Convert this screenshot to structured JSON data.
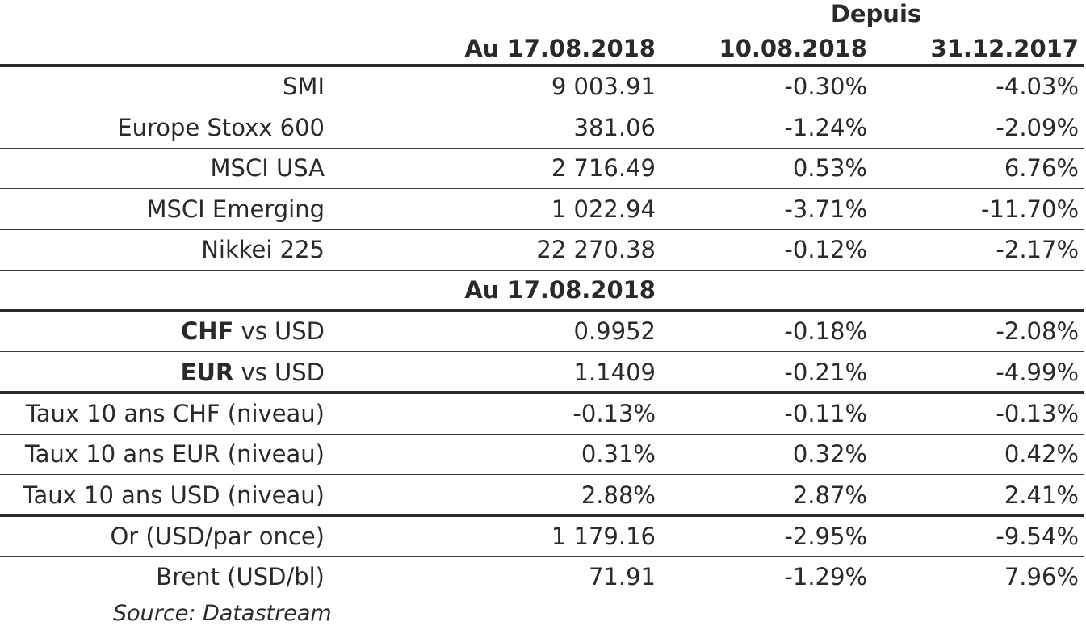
{
  "header": {
    "depuis": "Depuis",
    "col1": "Au 17.08.2018",
    "col2": "10.08.2018",
    "col3": "31.12.2017"
  },
  "section2_header": "Au 17.08.2018",
  "rows": [
    {
      "label": "SMI",
      "v1": "9 003.91",
      "v2": "-0.30%",
      "v3": "-4.03%"
    },
    {
      "label": "Europe Stoxx 600",
      "v1": "381.06",
      "v2": "-1.24%",
      "v3": "-2.09%"
    },
    {
      "label": "MSCI USA",
      "v1": "2 716.49",
      "v2": "0.53%",
      "v3": "6.76%"
    },
    {
      "label": "MSCI Emerging",
      "v1": "1 022.94",
      "v2": "-3.71%",
      "v3": "-11.70%"
    },
    {
      "label": "Nikkei 225",
      "v1": "22 270.38",
      "v2": "-0.12%",
      "v3": "-2.17%"
    }
  ],
  "fx_rows": [
    {
      "label_bold": "CHF",
      "label_rest": " vs USD",
      "v1": "0.9952",
      "v2": "-0.18%",
      "v3": "-2.08%"
    },
    {
      "label_bold": "EUR",
      "label_rest": " vs USD",
      "v1": "1.1409",
      "v2": "-0.21%",
      "v3": "-4.99%"
    }
  ],
  "rate_rows": [
    {
      "label": "Taux 10 ans CHF (niveau)",
      "v1": "-0.13%",
      "v2": "-0.11%",
      "v3": "-0.13%"
    },
    {
      "label": "Taux 10 ans EUR (niveau)",
      "v1": "0.31%",
      "v2": "0.32%",
      "v3": "0.42%"
    },
    {
      "label": "Taux 10 ans USD (niveau)",
      "v1": "2.88%",
      "v2": "2.87%",
      "v3": "2.41%"
    }
  ],
  "commodity_rows": [
    {
      "label": "Or (USD/par once)",
      "v1": "1 179.16",
      "v2": "-2.95%",
      "v3": "-9.54%"
    },
    {
      "label": "Brent (USD/bl)",
      "v1": "71.91",
      "v2": "-1.29%",
      "v3": "7.96%"
    }
  ],
  "source": "Source: Datastream"
}
